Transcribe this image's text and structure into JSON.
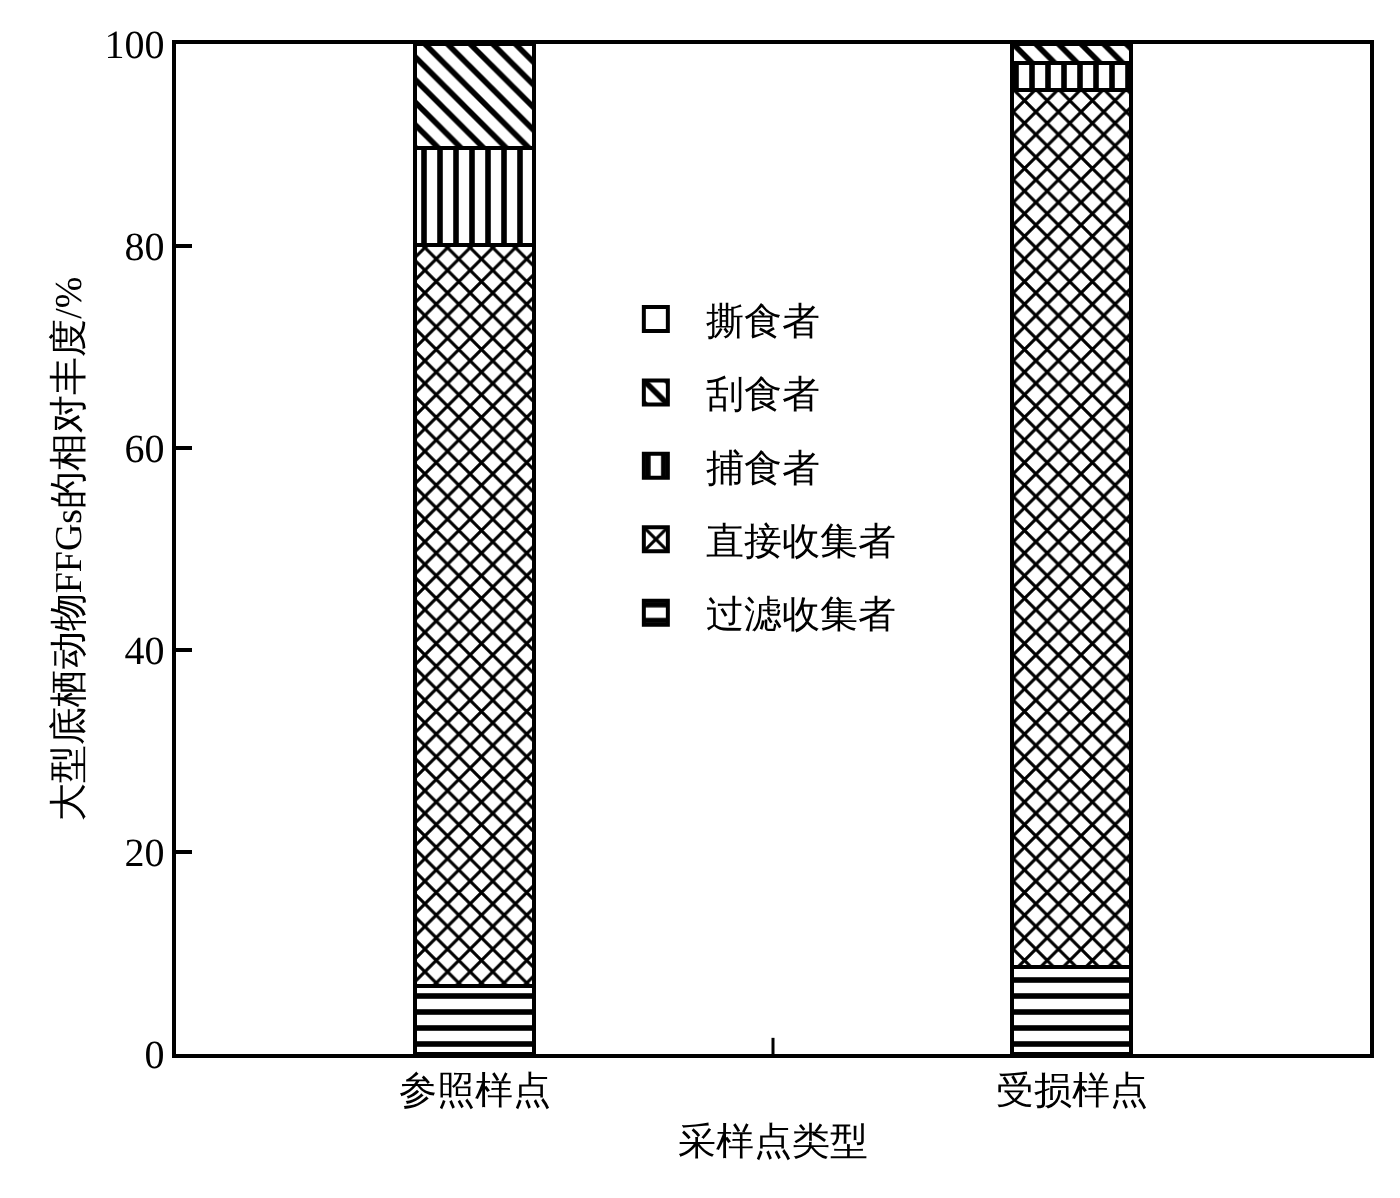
{
  "chart_data": {
    "type": "bar",
    "stacked": true,
    "xlabel": "采样点类型",
    "ylabel": "大型底栖动物FFGs的相对丰度/%",
    "categories": [
      "参照样点",
      "受损样点"
    ],
    "series": [
      {
        "name": "过滤收集者",
        "color": "#000000",
        "values": [
          6.7,
          8.6
        ]
      },
      {
        "name": "直接收集者",
        "color": "#000000",
        "values": [
          73.4,
          86.8
        ]
      },
      {
        "name": "捕食者",
        "color": "#000000",
        "values": [
          9.6,
          2.7
        ]
      },
      {
        "name": "刮食者",
        "color": "#000000",
        "values": [
          10.3,
          1.9
        ]
      },
      {
        "name": "撕食者",
        "color": "#000000",
        "values": [
          0,
          0
        ]
      }
    ],
    "ylim": [
      0,
      100
    ],
    "yticks": [
      0,
      20,
      40,
      60,
      80,
      100
    ],
    "legend": "center"
  }
}
